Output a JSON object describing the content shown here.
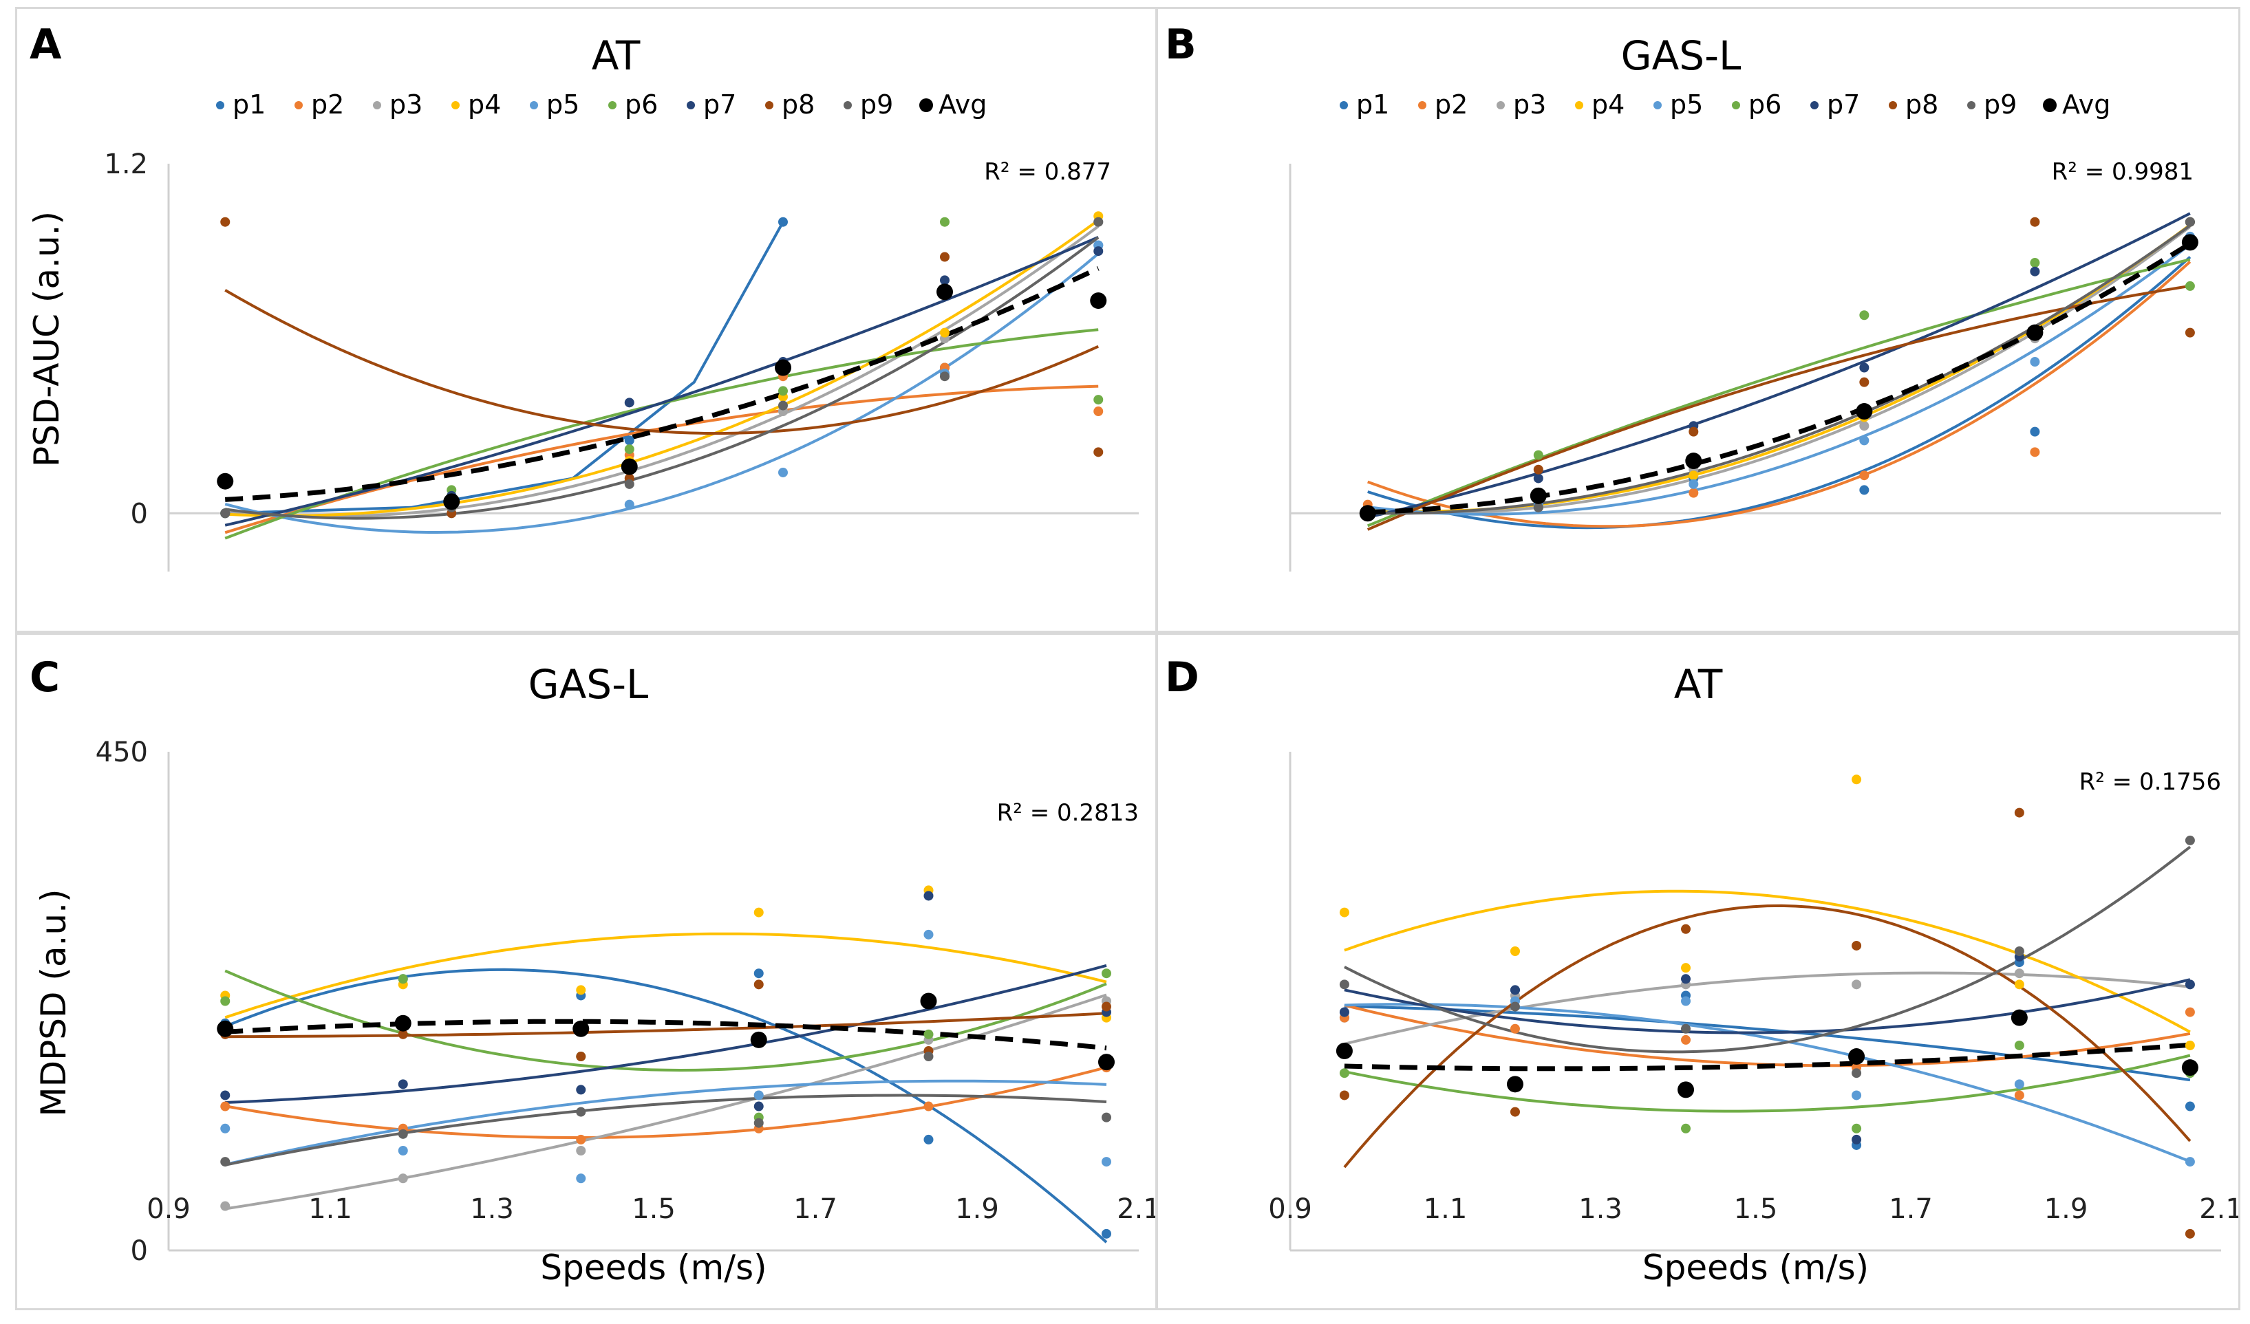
{
  "series_colors": {
    "p1": "#2E75B6",
    "p2": "#ED7D31",
    "p3": "#A5A5A5",
    "p4": "#FFC000",
    "p5": "#5B9BD5",
    "p6": "#70AD47",
    "p7": "#264478",
    "p8": "#9E480E",
    "p9": "#636363",
    "Avg": "#000000"
  },
  "chart_data": [
    {
      "panel": "A",
      "type": "scatter",
      "title": "AT",
      "xlabel": "",
      "ylabel": "PSD-AUC (a.u.)",
      "xlim": [
        0.9,
        2.1
      ],
      "ylim": [
        -0.2,
        1.2
      ],
      "yticks": [
        {
          "v": 0,
          "label": "0"
        },
        {
          "v": 1.2,
          "label": "1.2"
        }
      ],
      "xticks": [],
      "legend": [
        "p1",
        "p2",
        "p3",
        "p4",
        "p5",
        "p6",
        "p7",
        "p8",
        "p9",
        "Avg"
      ],
      "legend_position": "top",
      "r2": "R² = 0.877",
      "x": [
        0.97,
        1.25,
        1.47,
        1.66,
        1.86,
        2.05
      ],
      "series": [
        {
          "name": "p1",
          "values": [
            0.0,
            0.05,
            0.25,
            1.0,
            0.5,
            0.92
          ],
          "trend": [
            [
              0.97,
              0.0
            ],
            [
              1.2,
              0.02
            ],
            [
              1.4,
              0.12
            ],
            [
              1.55,
              0.45
            ],
            [
              1.66,
              1.0
            ]
          ]
        },
        {
          "name": "p2",
          "values": [
            0.0,
            0.03,
            0.2,
            0.47,
            0.5,
            0.35
          ],
          "trend": "poly"
        },
        {
          "name": "p3",
          "values": [
            0.0,
            0.02,
            0.15,
            0.35,
            0.6,
            1.0
          ],
          "trend": "poly"
        },
        {
          "name": "p4",
          "values": [
            0.0,
            0.02,
            0.18,
            0.4,
            0.62,
            1.02
          ],
          "trend": "poly"
        },
        {
          "name": "p5",
          "values": [
            0.0,
            0.0,
            0.03,
            0.14,
            0.48,
            0.92
          ],
          "trend": "poly"
        },
        {
          "name": "p6",
          "values": [
            0.0,
            0.08,
            0.22,
            0.42,
            1.0,
            0.39
          ],
          "trend": "poly"
        },
        {
          "name": "p7",
          "values": [
            0.0,
            0.06,
            0.38,
            0.52,
            0.8,
            0.9
          ],
          "trend": "poly"
        },
        {
          "name": "p8",
          "values": [
            1.0,
            0.0,
            0.12,
            0.5,
            0.88,
            0.21
          ],
          "trend": "poly"
        },
        {
          "name": "p9",
          "values": [
            0.0,
            0.02,
            0.1,
            0.37,
            0.47,
            1.0
          ],
          "trend": "poly"
        },
        {
          "name": "Avg",
          "values": [
            0.11,
            0.04,
            0.16,
            0.5,
            0.76,
            0.73
          ],
          "trend": "poly"
        }
      ]
    },
    {
      "panel": "B",
      "type": "scatter",
      "title": "GAS-L",
      "xlabel": "",
      "ylabel": "",
      "xlim": [
        0.9,
        2.1
      ],
      "ylim": [
        -0.2,
        1.2
      ],
      "yticks": [],
      "xticks": [],
      "legend": [
        "p1",
        "p2",
        "p3",
        "p4",
        "p5",
        "p6",
        "p7",
        "p8",
        "p9",
        "Avg"
      ],
      "legend_position": "top",
      "r2": "R² = 0.9981",
      "x": [
        1.0,
        1.22,
        1.42,
        1.64,
        1.86,
        2.06
      ],
      "series": [
        {
          "name": "p1",
          "values": [
            0.0,
            0.02,
            0.12,
            0.08,
            0.28,
            1.0
          ],
          "trend": "poly"
        },
        {
          "name": "p2",
          "values": [
            0.03,
            0.05,
            0.07,
            0.13,
            0.21,
            1.0
          ],
          "trend": "poly"
        },
        {
          "name": "p3",
          "values": [
            0.0,
            0.02,
            0.15,
            0.3,
            0.6,
            1.0
          ],
          "trend": "poly"
        },
        {
          "name": "p4",
          "values": [
            0.0,
            0.05,
            0.13,
            0.33,
            0.62,
            1.0
          ],
          "trend": "poly"
        },
        {
          "name": "p5",
          "values": [
            0.0,
            0.03,
            0.1,
            0.25,
            0.52,
            0.95
          ],
          "trend": "poly"
        },
        {
          "name": "p6",
          "values": [
            0.0,
            0.2,
            0.18,
            0.68,
            0.86,
            0.78
          ],
          "trend": "poly"
        },
        {
          "name": "p7",
          "values": [
            0.0,
            0.12,
            0.3,
            0.5,
            0.83,
            1.0
          ],
          "trend": "poly"
        },
        {
          "name": "p8",
          "values": [
            0.0,
            0.15,
            0.28,
            0.45,
            1.0,
            0.62
          ],
          "trend": "poly"
        },
        {
          "name": "p9",
          "values": [
            0.0,
            0.02,
            0.17,
            0.34,
            0.62,
            1.0
          ],
          "trend": "poly"
        },
        {
          "name": "Avg",
          "values": [
            0.0,
            0.06,
            0.18,
            0.35,
            0.62,
            0.93
          ],
          "trend": "poly"
        }
      ]
    },
    {
      "panel": "C",
      "type": "scatter",
      "title": "GAS-L",
      "xlabel": "Speeds (m/s)",
      "ylabel": "MDPSD (a.u.)",
      "xlim": [
        0.9,
        2.1
      ],
      "ylim": [
        0,
        450
      ],
      "yticks": [
        {
          "v": 0,
          "label": "0"
        },
        {
          "v": 450,
          "label": "450"
        }
      ],
      "xticks": [
        "0.9",
        "1.1",
        "1.3",
        "1.5",
        "1.7",
        "1.9",
        "2.1"
      ],
      "legend": [],
      "legend_position": "",
      "r2": "R² = 0.2813",
      "x": [
        0.97,
        1.19,
        1.41,
        1.63,
        1.84,
        2.06
      ],
      "series": [
        {
          "name": "p1",
          "values": [
            205,
            245,
            230,
            250,
            100,
            15
          ],
          "trend": "poly"
        },
        {
          "name": "p2",
          "values": [
            130,
            110,
            100,
            110,
            130,
            165
          ],
          "trend": "poly"
        },
        {
          "name": "p3",
          "values": [
            40,
            65,
            90,
            140,
            190,
            225
          ],
          "trend": "poly"
        },
        {
          "name": "p4",
          "values": [
            230,
            240,
            235,
            305,
            325,
            210
          ],
          "trend": "poly"
        },
        {
          "name": "p5",
          "values": [
            110,
            90,
            65,
            140,
            285,
            80
          ],
          "trend": "poly"
        },
        {
          "name": "p6",
          "values": [
            225,
            245,
            175,
            120,
            195,
            250
          ],
          "trend": "poly"
        },
        {
          "name": "p7",
          "values": [
            140,
            150,
            145,
            130,
            320,
            215
          ],
          "trend": "poly"
        },
        {
          "name": "p8",
          "values": [
            195,
            195,
            175,
            240,
            180,
            220
          ],
          "trend": "poly"
        },
        {
          "name": "p9",
          "values": [
            80,
            105,
            125,
            115,
            175,
            120
          ],
          "trend": "poly"
        },
        {
          "name": "Avg",
          "values": [
            200,
            205,
            200,
            190,
            225,
            170
          ],
          "trend": "poly"
        }
      ]
    },
    {
      "panel": "D",
      "type": "scatter",
      "title": "AT",
      "xlabel": "Speeds (m/s)",
      "ylabel": "",
      "xlim": [
        0.9,
        2.1
      ],
      "ylim": [
        0,
        450
      ],
      "yticks": [],
      "xticks": [
        "0.9",
        "1.1",
        "1.3",
        "1.5",
        "1.7",
        "1.9",
        "2.1"
      ],
      "legend": [],
      "legend_position": "",
      "r2": "R² = 0.1756",
      "x": [
        0.97,
        1.19,
        1.41,
        1.63,
        1.84,
        2.06
      ],
      "series": [
        {
          "name": "p1",
          "values": [
            210,
            235,
            230,
            95,
            260,
            130
          ],
          "trend": "poly"
        },
        {
          "name": "p2",
          "values": [
            210,
            200,
            190,
            165,
            140,
            215
          ],
          "trend": "poly"
        },
        {
          "name": "p3",
          "values": [
            180,
            230,
            240,
            240,
            250,
            240
          ],
          "trend": "poly"
        },
        {
          "name": "p4",
          "values": [
            305,
            270,
            255,
            425,
            240,
            185
          ],
          "trend": "poly"
        },
        {
          "name": "p5",
          "values": [
            215,
            225,
            225,
            140,
            150,
            80
          ],
          "trend": "poly"
        },
        {
          "name": "p6",
          "values": [
            160,
            150,
            110,
            110,
            185,
            160
          ],
          "trend": "poly"
        },
        {
          "name": "p7",
          "values": [
            215,
            235,
            245,
            100,
            265,
            240
          ],
          "trend": "poly"
        },
        {
          "name": "p8",
          "values": [
            140,
            125,
            290,
            275,
            395,
            15
          ],
          "trend": "poly"
        },
        {
          "name": "p9",
          "values": [
            240,
            220,
            200,
            160,
            270,
            370
          ],
          "trend": "poly"
        },
        {
          "name": "Avg",
          "values": [
            180,
            150,
            145,
            175,
            210,
            165
          ],
          "trend": "poly"
        }
      ]
    }
  ]
}
